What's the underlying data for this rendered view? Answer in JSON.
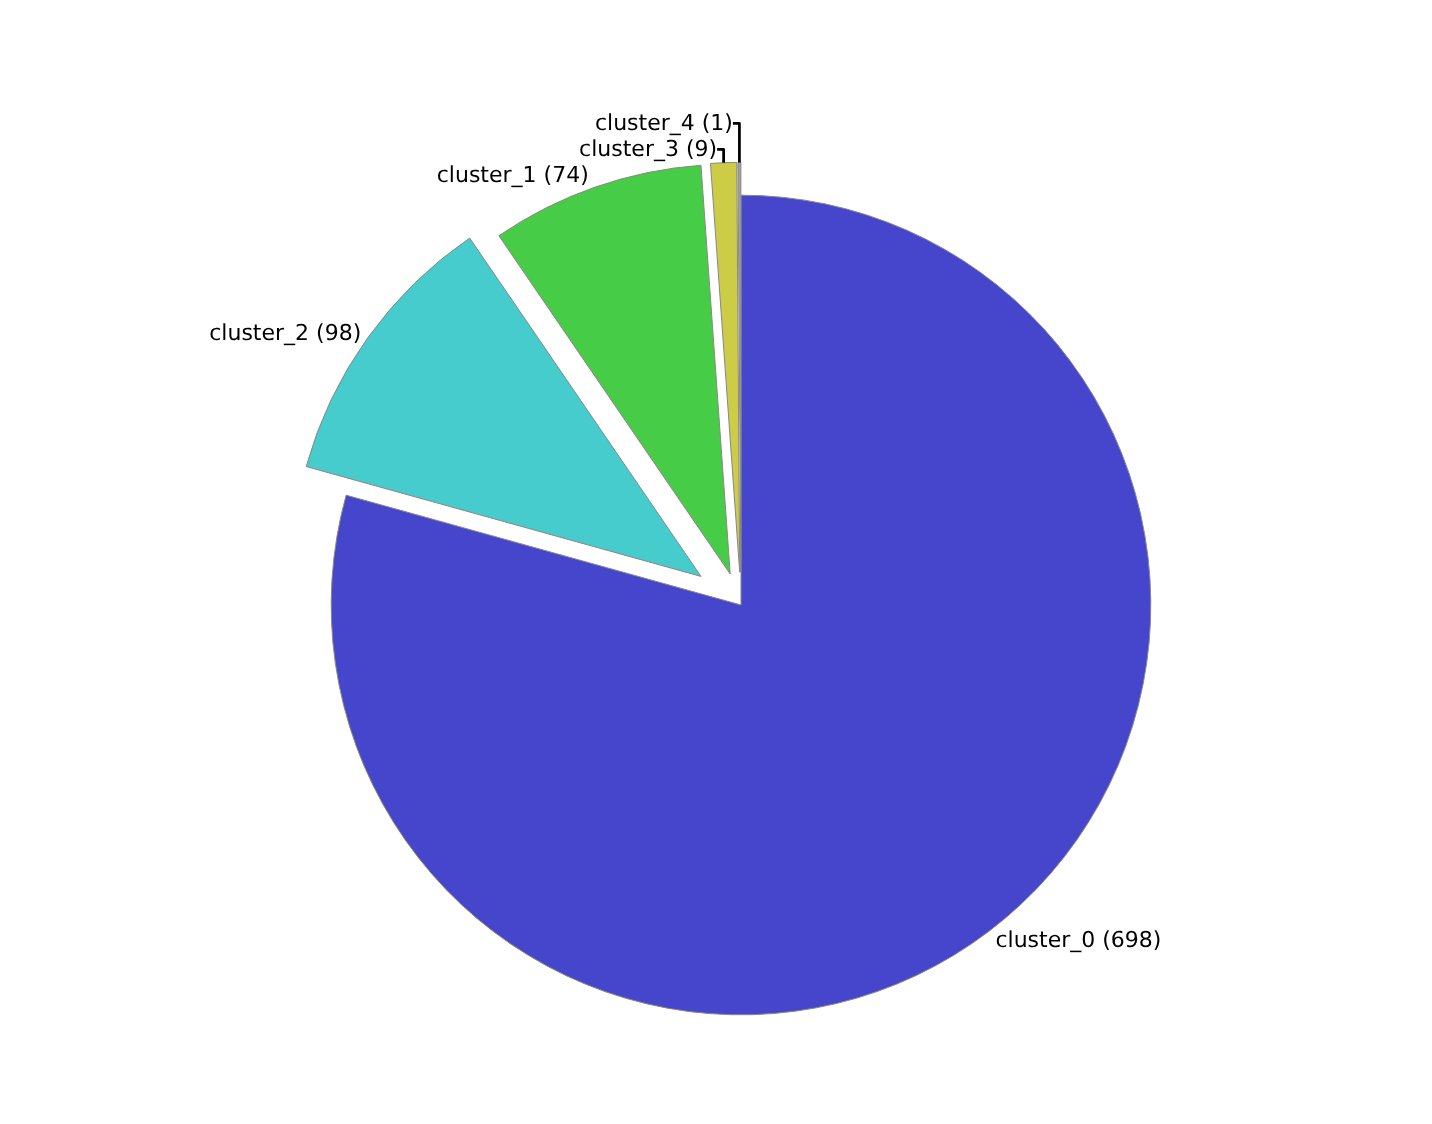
{
  "chart_data": {
    "type": "pie",
    "categories": [
      "cluster_0 (698)",
      "cluster_2 (98)",
      "cluster_1 (74)",
      "cluster_3 (9)",
      "cluster_4 (1)"
    ],
    "values": [
      698,
      98,
      74,
      9,
      1
    ],
    "colors": [
      "#4646cc",
      "#46cccc",
      "#46cc46",
      "#cccc46",
      "#a0a0a0"
    ],
    "legend": false
  }
}
